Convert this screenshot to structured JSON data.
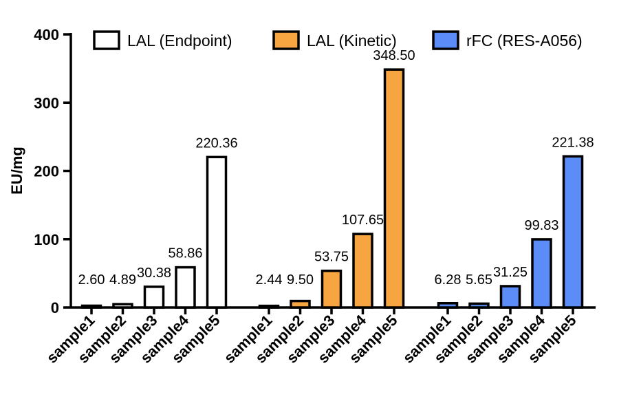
{
  "chart_data": {
    "type": "bar",
    "title": "",
    "xlabel": "",
    "ylabel": "EU/mg",
    "ylim": [
      0,
      400
    ],
    "yticks": [
      0,
      100,
      200,
      300,
      400
    ],
    "grid": false,
    "legend_position": "top",
    "categories": [
      "sample1",
      "sample2",
      "sample3",
      "sample4",
      "sample5"
    ],
    "series": [
      {
        "name": "LAL (Endpoint)",
        "color": "#ffffff",
        "values": [
          2.6,
          4.89,
          30.38,
          58.86,
          220.36
        ],
        "labels": [
          "2.60",
          "4.89",
          "30.38",
          "58.86",
          "220.36"
        ]
      },
      {
        "name": "LAL (Kinetic)",
        "color": "#f7a540",
        "values": [
          2.44,
          9.5,
          53.75,
          107.65,
          348.5
        ],
        "labels": [
          "2.44",
          "9.50",
          "53.75",
          "107.65",
          "348.50"
        ]
      },
      {
        "name": "rFC (RES-A056)",
        "color": "#5b8cf7",
        "values": [
          6.28,
          5.65,
          31.25,
          99.83,
          221.38
        ],
        "labels": [
          "6.28",
          "5.65",
          "31.25",
          "99.83",
          "221.38"
        ]
      }
    ]
  }
}
